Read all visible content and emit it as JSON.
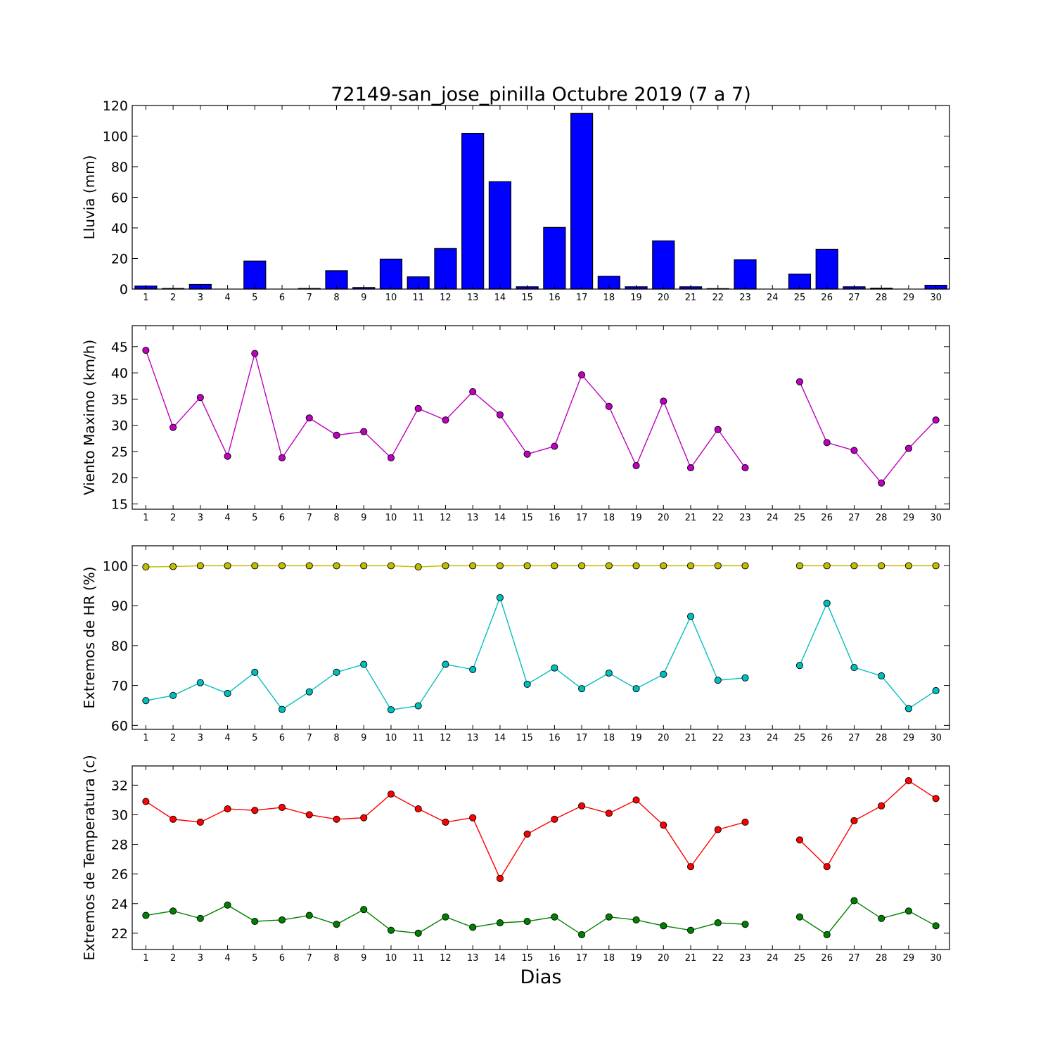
{
  "title": "72149-san_jose_pinilla Octubre 2019  (7 a 7)",
  "xlabel": "Dias",
  "chart_data": [
    {
      "type": "bar",
      "ylabel": "Lluvia (mm)",
      "ylim": [
        0,
        120
      ],
      "yticks": [
        0,
        20,
        40,
        60,
        80,
        100,
        120
      ],
      "x": [
        1,
        2,
        3,
        4,
        5,
        6,
        7,
        8,
        9,
        10,
        11,
        12,
        13,
        14,
        15,
        16,
        17,
        18,
        19,
        20,
        21,
        22,
        23,
        24,
        25,
        26,
        27,
        28,
        29,
        30
      ],
      "series": [
        {
          "color": "#0000ff",
          "values": [
            2.0,
            0.4,
            3.0,
            0,
            18.3,
            0,
            0.4,
            12.0,
            1.0,
            19.6,
            8.0,
            26.5,
            101.8,
            70.2,
            1.5,
            40.3,
            114.8,
            8.4,
            1.5,
            31.5,
            1.5,
            0.3,
            19.2,
            0,
            9.8,
            26.0,
            1.5,
            0.6,
            0,
            2.5
          ]
        }
      ]
    },
    {
      "type": "line",
      "ylabel": "Viento Maximo (km/h)",
      "ylim": [
        14,
        49
      ],
      "yticks": [
        15,
        20,
        25,
        30,
        35,
        40,
        45
      ],
      "x": [
        1,
        2,
        3,
        4,
        5,
        6,
        7,
        8,
        9,
        10,
        11,
        12,
        13,
        14,
        15,
        16,
        17,
        18,
        19,
        20,
        21,
        22,
        23,
        24,
        25,
        26,
        27,
        28,
        29,
        30
      ],
      "series": [
        {
          "color": "#bf00bf",
          "values": [
            44.3,
            29.6,
            35.3,
            24.1,
            43.7,
            23.8,
            31.4,
            28.1,
            28.8,
            23.8,
            33.2,
            31.0,
            36.4,
            32.0,
            24.5,
            26.0,
            39.6,
            33.6,
            22.3,
            34.6,
            21.9,
            29.2,
            21.9,
            null,
            38.3,
            26.7,
            25.2,
            19.0,
            25.6,
            31.0
          ]
        }
      ]
    },
    {
      "type": "line",
      "ylabel": "Extremos de HR (%)",
      "ylim": [
        59,
        105
      ],
      "yticks": [
        60,
        70,
        80,
        90,
        100
      ],
      "x": [
        1,
        2,
        3,
        4,
        5,
        6,
        7,
        8,
        9,
        10,
        11,
        12,
        13,
        14,
        15,
        16,
        17,
        18,
        19,
        20,
        21,
        22,
        23,
        24,
        25,
        26,
        27,
        28,
        29,
        30
      ],
      "series": [
        {
          "color": "#bfbf00",
          "values": [
            99.7,
            99.8,
            100,
            100,
            100,
            100,
            100,
            100,
            100,
            100,
            99.7,
            100,
            100,
            100,
            100,
            100,
            100,
            100,
            100,
            100,
            100,
            100,
            100,
            null,
            100,
            100,
            100,
            100,
            100,
            100
          ]
        },
        {
          "color": "#00bfbf",
          "values": [
            66.2,
            67.5,
            70.7,
            68.0,
            73.3,
            64.0,
            68.4,
            73.3,
            75.3,
            63.9,
            64.9,
            75.3,
            74.0,
            92.0,
            70.3,
            74.4,
            69.2,
            73.1,
            69.2,
            72.8,
            87.3,
            71.3,
            71.9,
            null,
            75.0,
            90.6,
            74.5,
            72.4,
            64.2,
            68.7
          ]
        }
      ]
    },
    {
      "type": "line",
      "ylabel": "Extremos de Temperatura (c)",
      "ylim": [
        20.9,
        33.3
      ],
      "yticks": [
        22,
        24,
        26,
        28,
        30,
        32
      ],
      "x": [
        1,
        2,
        3,
        4,
        5,
        6,
        7,
        8,
        9,
        10,
        11,
        12,
        13,
        14,
        15,
        16,
        17,
        18,
        19,
        20,
        21,
        22,
        23,
        24,
        25,
        26,
        27,
        28,
        29,
        30
      ],
      "series": [
        {
          "color": "#ff0000",
          "values": [
            30.9,
            29.7,
            29.5,
            30.4,
            30.3,
            30.5,
            30.0,
            29.7,
            29.8,
            31.4,
            30.4,
            29.5,
            29.8,
            25.7,
            28.7,
            29.7,
            30.6,
            30.1,
            31.0,
            29.3,
            26.5,
            29.0,
            29.5,
            null,
            28.3,
            26.5,
            29.6,
            30.6,
            32.3,
            31.1
          ]
        },
        {
          "color": "#008000",
          "values": [
            23.2,
            23.5,
            23.0,
            23.9,
            22.8,
            22.9,
            23.2,
            22.6,
            23.6,
            22.2,
            22.0,
            23.1,
            22.4,
            22.7,
            22.8,
            23.1,
            21.9,
            23.1,
            22.9,
            22.5,
            22.2,
            22.7,
            22.6,
            null,
            23.1,
            21.9,
            24.2,
            23.0,
            23.5,
            22.5
          ]
        }
      ]
    }
  ]
}
